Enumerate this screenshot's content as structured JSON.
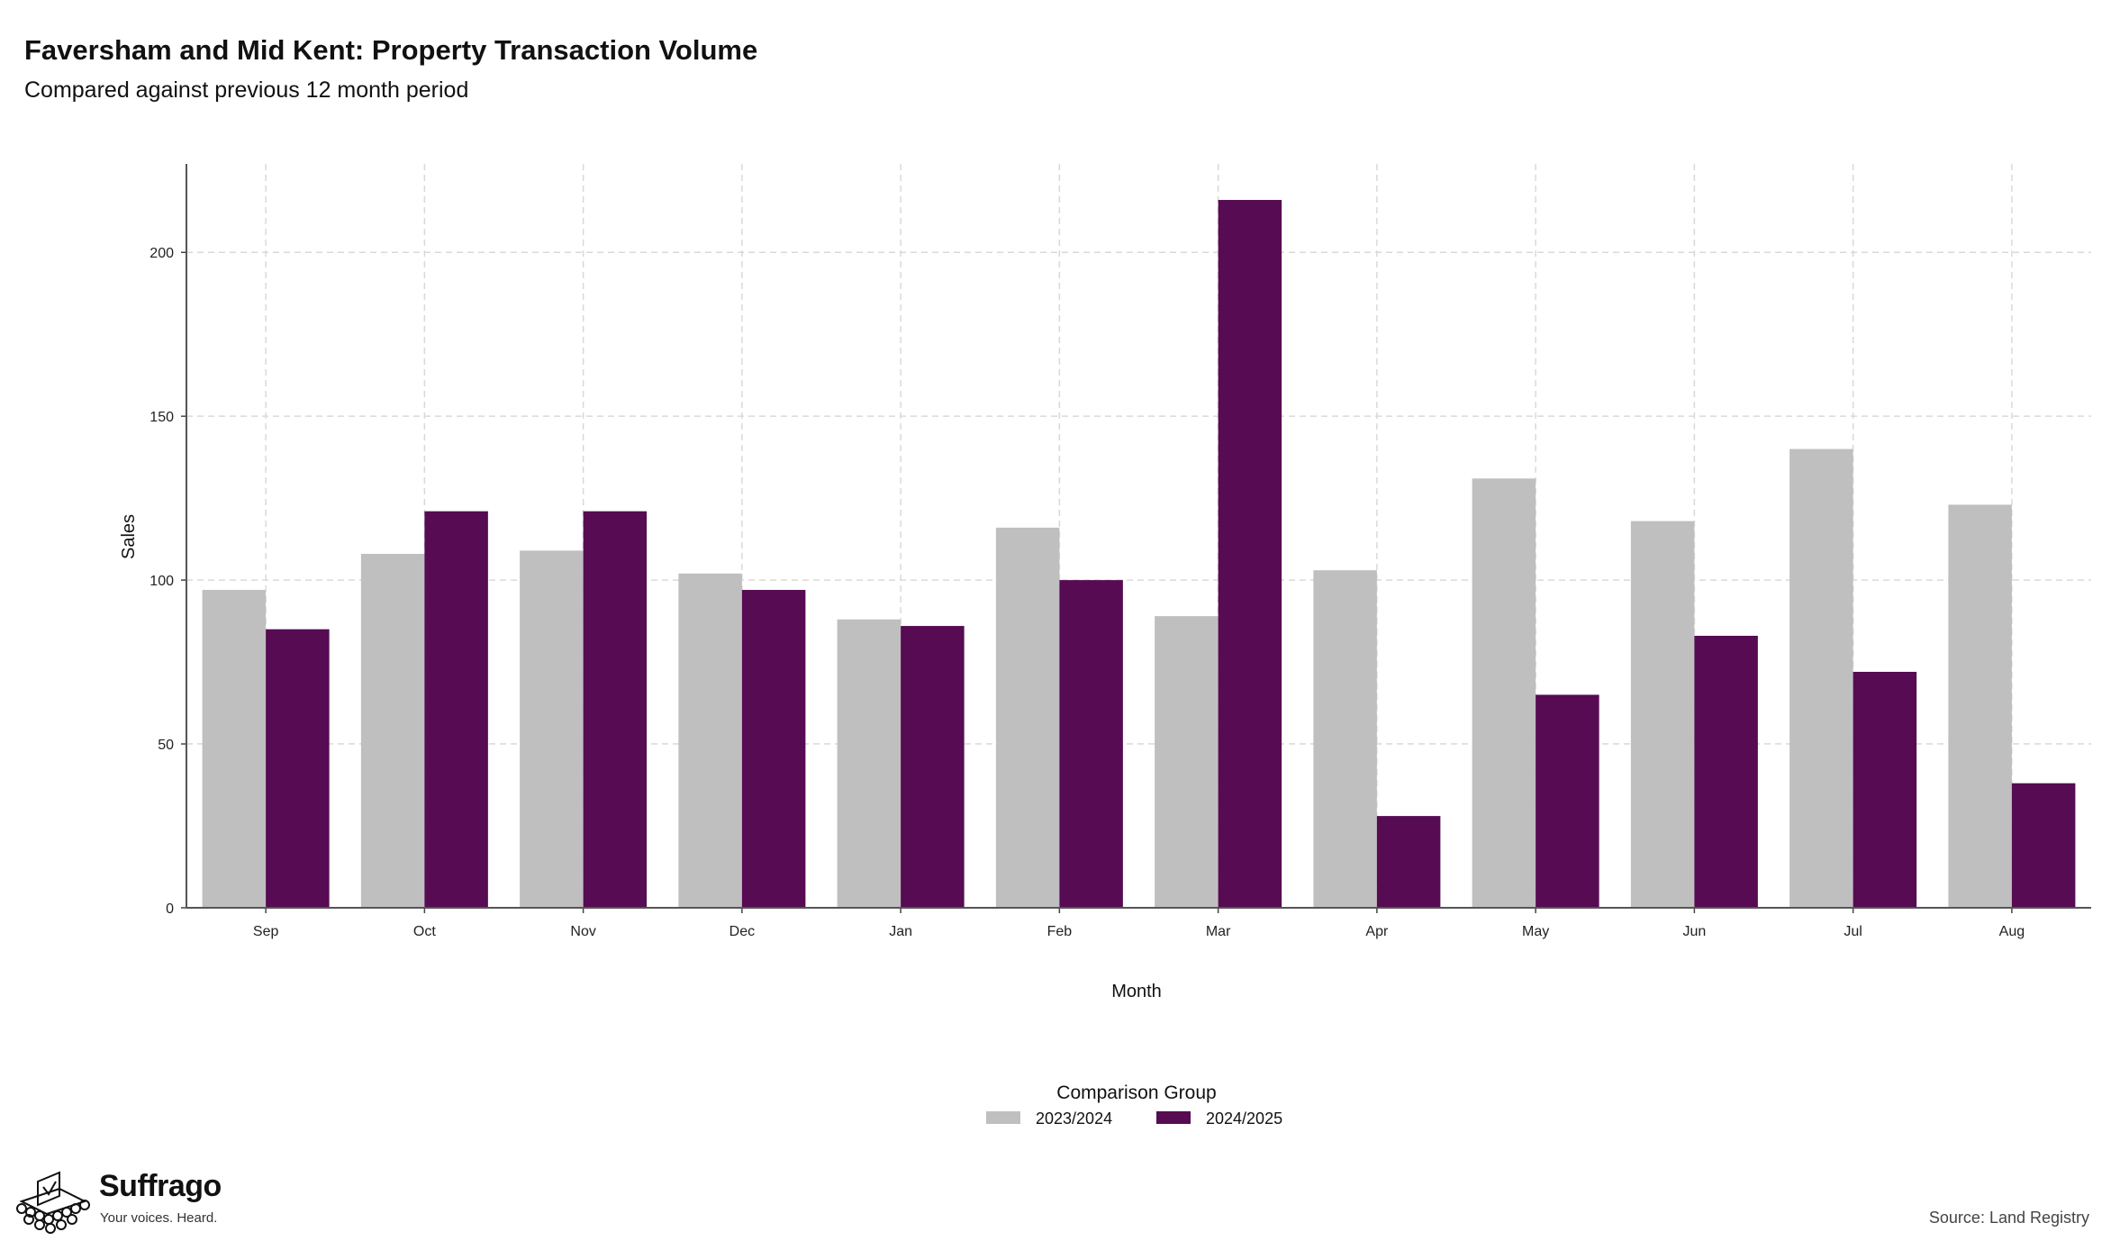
{
  "chart_data": {
    "type": "bar",
    "title": "Faversham and Mid Kent: Property Transaction Volume",
    "subtitle": "Compared against previous 12 month period",
    "xlabel": "Month",
    "ylabel": "Sales",
    "ylim": [
      0,
      227
    ],
    "yticks": [
      0,
      50,
      100,
      150,
      200
    ],
    "grid": true,
    "legend_placement": "bottom-center",
    "legend_title": "Comparison Group",
    "categories": [
      "Sep",
      "Oct",
      "Nov",
      "Dec",
      "Jan",
      "Feb",
      "Mar",
      "Apr",
      "May",
      "Jun",
      "Jul",
      "Aug"
    ],
    "series": [
      {
        "name": "2023/2024",
        "color": "#bfbfbf",
        "values": [
          97,
          108,
          109,
          102,
          88,
          116,
          89,
          103,
          131,
          118,
          140,
          123
        ]
      },
      {
        "name": "2024/2025",
        "color": "#560b52",
        "values": [
          85,
          121,
          121,
          97,
          86,
          100,
          216,
          28,
          65,
          83,
          72,
          38
        ]
      }
    ],
    "source": "Source: Land Registry"
  },
  "branding": {
    "name": "Suffrago",
    "tagline": "Your voices. Heard.",
    "logo_icon": "ballot-box-crowd-icon"
  }
}
